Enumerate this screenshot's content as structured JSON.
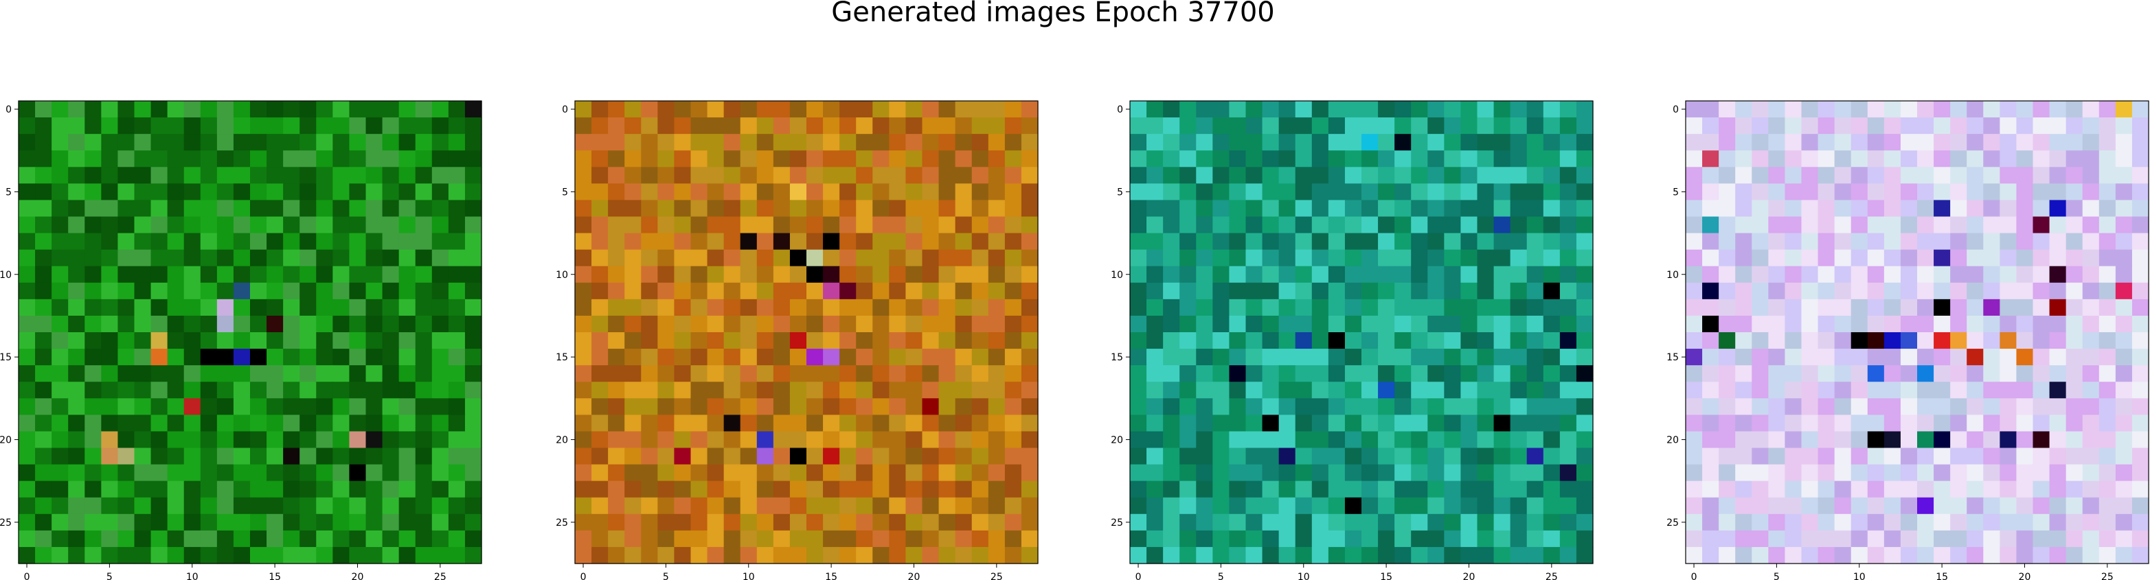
{
  "figure": {
    "title": "Generated images Epoch 37700"
  },
  "chart_data": [
    {
      "type": "heatmap",
      "name": "panel-1-green",
      "grid": [
        28,
        28
      ],
      "xticks": [
        0,
        5,
        10,
        15,
        20,
        25
      ],
      "yticks": [
        0,
        5,
        10,
        15,
        20,
        25
      ],
      "xlim": [
        -0.5,
        27.5
      ],
      "ylim": [
        27.5,
        -0.5
      ],
      "palette": [
        "#0a5a0a",
        "#0f7a10",
        "#129812",
        "#1aa61a",
        "#2fb82f",
        "#0c6b0c",
        "#3f9f3f",
        "#075007"
      ],
      "accents": [
        {
          "x": 11,
          "y": 15,
          "color": "#000000"
        },
        {
          "x": 12,
          "y": 15,
          "color": "#000000"
        },
        {
          "x": 13,
          "y": 15,
          "color": "#1a1ab0"
        },
        {
          "x": 14,
          "y": 15,
          "color": "#000000"
        },
        {
          "x": 12,
          "y": 12,
          "color": "#c9b0e0"
        },
        {
          "x": 13,
          "y": 11,
          "color": "#205080"
        },
        {
          "x": 12,
          "y": 13,
          "color": "#aab0d0"
        },
        {
          "x": 8,
          "y": 14,
          "color": "#d0b040"
        },
        {
          "x": 8,
          "y": 15,
          "color": "#e07020"
        },
        {
          "x": 10,
          "y": 18,
          "color": "#c02020"
        },
        {
          "x": 5,
          "y": 20,
          "color": "#d0a040"
        },
        {
          "x": 5,
          "y": 21,
          "color": "#d09050"
        },
        {
          "x": 6,
          "y": 21,
          "color": "#b0b070"
        },
        {
          "x": 20,
          "y": 20,
          "color": "#d09080"
        },
        {
          "x": 21,
          "y": 20,
          "color": "#101010"
        },
        {
          "x": 20,
          "y": 22,
          "color": "#000000"
        },
        {
          "x": 16,
          "y": 21,
          "color": "#100808"
        },
        {
          "x": 27,
          "y": 0,
          "color": "#101010"
        },
        {
          "x": 15,
          "y": 13,
          "color": "#300808"
        }
      ]
    },
    {
      "type": "heatmap",
      "name": "panel-2-orange",
      "grid": [
        28,
        28
      ],
      "xticks": [
        0,
        5,
        10,
        15,
        20,
        25
      ],
      "yticks": [
        0,
        5,
        10,
        15,
        20,
        25
      ],
      "xlim": [
        -0.5,
        27.5
      ],
      "ylim": [
        27.5,
        -0.5
      ],
      "palette": [
        "#c06010",
        "#d08a10",
        "#b07010",
        "#e0a020",
        "#a05010",
        "#c09020",
        "#d07030",
        "#906010",
        "#b09010"
      ],
      "accents": [
        {
          "x": 13,
          "y": 9,
          "color": "#000000"
        },
        {
          "x": 14,
          "y": 10,
          "color": "#000000"
        },
        {
          "x": 15,
          "y": 10,
          "color": "#300010"
        },
        {
          "x": 15,
          "y": 11,
          "color": "#c040a0"
        },
        {
          "x": 16,
          "y": 11,
          "color": "#600020"
        },
        {
          "x": 13,
          "y": 14,
          "color": "#c01010"
        },
        {
          "x": 14,
          "y": 15,
          "color": "#a020d0"
        },
        {
          "x": 15,
          "y": 15,
          "color": "#b060e0"
        },
        {
          "x": 11,
          "y": 20,
          "color": "#3030c0"
        },
        {
          "x": 11,
          "y": 21,
          "color": "#a060e0"
        },
        {
          "x": 13,
          "y": 21,
          "color": "#000000"
        },
        {
          "x": 9,
          "y": 19,
          "color": "#100808"
        },
        {
          "x": 12,
          "y": 8,
          "color": "#200808"
        },
        {
          "x": 10,
          "y": 8,
          "color": "#100808"
        },
        {
          "x": 15,
          "y": 8,
          "color": "#000000"
        },
        {
          "x": 14,
          "y": 9,
          "color": "#c0d0a0"
        },
        {
          "x": 15,
          "y": 21,
          "color": "#c01010"
        },
        {
          "x": 6,
          "y": 21,
          "color": "#a00020"
        },
        {
          "x": 21,
          "y": 18,
          "color": "#900000"
        },
        {
          "x": 13,
          "y": 5,
          "color": "#f0c040"
        }
      ]
    },
    {
      "type": "heatmap",
      "name": "panel-3-teal",
      "grid": [
        28,
        28
      ],
      "xticks": [
        0,
        5,
        10,
        15,
        20,
        25
      ],
      "yticks": [
        0,
        5,
        10,
        15,
        20,
        25
      ],
      "xlim": [
        -0.5,
        27.5
      ],
      "ylim": [
        27.5,
        -0.5
      ],
      "palette": [
        "#0a8a5a",
        "#10a070",
        "#20b090",
        "#108070",
        "#30c0a0",
        "#0a6a50",
        "#1a9a8a",
        "#40d0c0",
        "#0a7060"
      ],
      "accents": [
        {
          "x": 16,
          "y": 2,
          "color": "#000818"
        },
        {
          "x": 14,
          "y": 2,
          "color": "#10c0e0"
        },
        {
          "x": 25,
          "y": 11,
          "color": "#000000"
        },
        {
          "x": 26,
          "y": 14,
          "color": "#000830"
        },
        {
          "x": 12,
          "y": 14,
          "color": "#000000"
        },
        {
          "x": 8,
          "y": 19,
          "color": "#000000"
        },
        {
          "x": 9,
          "y": 21,
          "color": "#101060"
        },
        {
          "x": 13,
          "y": 24,
          "color": "#000000"
        },
        {
          "x": 22,
          "y": 19,
          "color": "#000000"
        },
        {
          "x": 24,
          "y": 21,
          "color": "#2020a0"
        },
        {
          "x": 26,
          "y": 22,
          "color": "#101040"
        },
        {
          "x": 22,
          "y": 7,
          "color": "#1040a0"
        },
        {
          "x": 15,
          "y": 17,
          "color": "#1050c0"
        },
        {
          "x": 6,
          "y": 16,
          "color": "#000020"
        },
        {
          "x": 27,
          "y": 16,
          "color": "#000818"
        },
        {
          "x": 10,
          "y": 14,
          "color": "#1040a0"
        }
      ]
    },
    {
      "type": "heatmap",
      "name": "panel-4-pastel",
      "grid": [
        28,
        28
      ],
      "xticks": [
        0,
        5,
        10,
        15,
        20,
        25
      ],
      "yticks": [
        0,
        5,
        10,
        15,
        20,
        25
      ],
      "xlim": [
        -0.5,
        27.5
      ],
      "ylim": [
        27.5,
        -0.5
      ],
      "palette": [
        "#e0d0f0",
        "#d0c8f8",
        "#f0e0f8",
        "#c8d8f0",
        "#e8c8f0",
        "#d8e8f0",
        "#c0a8e8",
        "#f0f0f8",
        "#b8c8e0",
        "#d8a8f0"
      ],
      "accents": [
        {
          "x": 10,
          "y": 14,
          "color": "#000000"
        },
        {
          "x": 11,
          "y": 14,
          "color": "#300000"
        },
        {
          "x": 12,
          "y": 14,
          "color": "#1010c0"
        },
        {
          "x": 13,
          "y": 14,
          "color": "#3050d0"
        },
        {
          "x": 15,
          "y": 14,
          "color": "#e02020"
        },
        {
          "x": 16,
          "y": 14,
          "color": "#f0a030"
        },
        {
          "x": 19,
          "y": 14,
          "color": "#e08020"
        },
        {
          "x": 20,
          "y": 15,
          "color": "#e07010"
        },
        {
          "x": 17,
          "y": 15,
          "color": "#c02010"
        },
        {
          "x": 11,
          "y": 20,
          "color": "#000000"
        },
        {
          "x": 12,
          "y": 20,
          "color": "#101030"
        },
        {
          "x": 14,
          "y": 20,
          "color": "#0a8a5a"
        },
        {
          "x": 15,
          "y": 20,
          "color": "#000040"
        },
        {
          "x": 19,
          "y": 20,
          "color": "#101060"
        },
        {
          "x": 21,
          "y": 20,
          "color": "#300010"
        },
        {
          "x": 22,
          "y": 17,
          "color": "#101040"
        },
        {
          "x": 22,
          "y": 12,
          "color": "#900000"
        },
        {
          "x": 22,
          "y": 10,
          "color": "#300020"
        },
        {
          "x": 15,
          "y": 6,
          "color": "#2020a0"
        },
        {
          "x": 22,
          "y": 6,
          "color": "#1010c0"
        },
        {
          "x": 21,
          "y": 7,
          "color": "#600030"
        },
        {
          "x": 15,
          "y": 12,
          "color": "#000000"
        },
        {
          "x": 15,
          "y": 9,
          "color": "#3020a0"
        },
        {
          "x": 1,
          "y": 11,
          "color": "#000040"
        },
        {
          "x": 1,
          "y": 13,
          "color": "#000000"
        },
        {
          "x": 2,
          "y": 14,
          "color": "#0a6a2a"
        },
        {
          "x": 0,
          "y": 15,
          "color": "#6030c0"
        },
        {
          "x": 14,
          "y": 24,
          "color": "#6010e0"
        },
        {
          "x": 26,
          "y": 11,
          "color": "#e02060"
        },
        {
          "x": 1,
          "y": 3,
          "color": "#d04060"
        },
        {
          "x": 1,
          "y": 7,
          "color": "#20a0b0"
        },
        {
          "x": 14,
          "y": 16,
          "color": "#1080e0"
        },
        {
          "x": 11,
          "y": 16,
          "color": "#2060e0"
        },
        {
          "x": 26,
          "y": 0,
          "color": "#f0c030"
        },
        {
          "x": 18,
          "y": 12,
          "color": "#9020c0"
        }
      ]
    }
  ]
}
